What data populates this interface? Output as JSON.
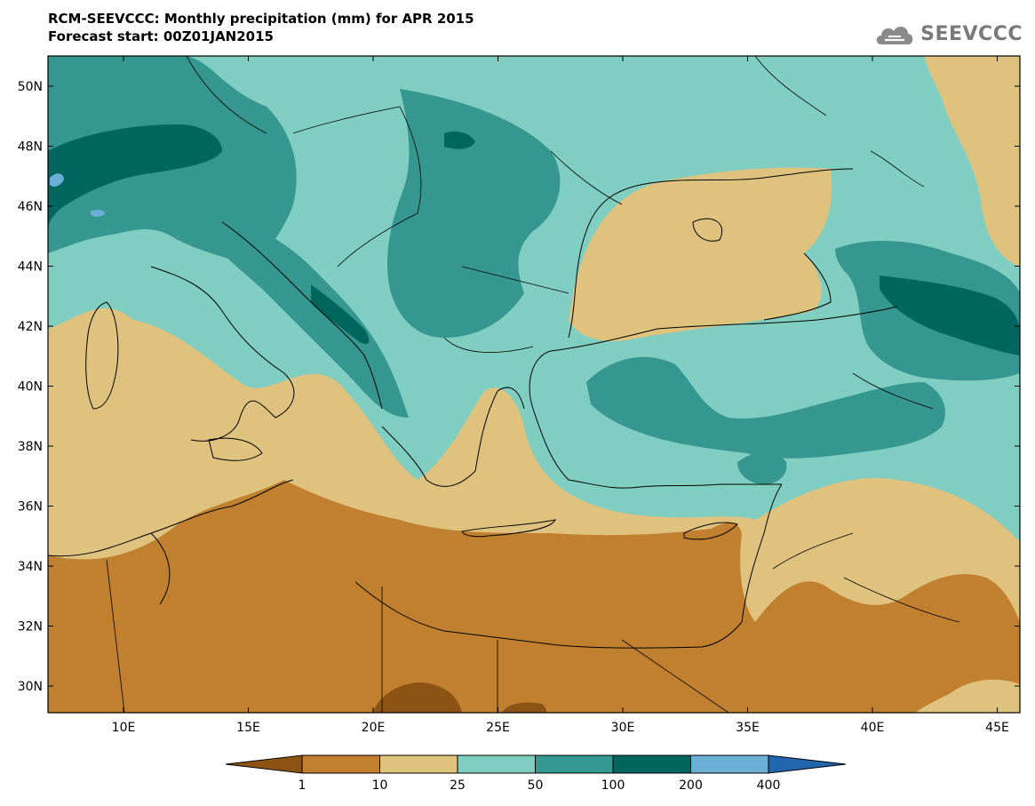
{
  "header": {
    "title_line1": "RCM-SEEVCCC: Monthly precipitation (mm) for APR 2015",
    "title_line2": "Forecast start: 00Z01JAN2015",
    "logo_text": "SEEVCCC"
  },
  "map": {
    "lat_ticks": [
      "50N",
      "48N",
      "46N",
      "44N",
      "42N",
      "40N",
      "38N",
      "36N",
      "34N",
      "32N",
      "30N"
    ],
    "lon_ticks": [
      "10E",
      "15E",
      "20E",
      "25E",
      "30E",
      "35E",
      "40E",
      "45E"
    ],
    "colors": {
      "lt1": "#8d5314",
      "c1_10": "#c0802f",
      "c10_25": "#dfc27d",
      "c25_50": "#80cdc1",
      "c50_100": "#35978f",
      "c100_200": "#01665e",
      "c200_400": "#6baed6",
      "gt400": "#2166ac"
    }
  },
  "colorbar": {
    "labels": [
      "1",
      "10",
      "25",
      "50",
      "100",
      "200",
      "400"
    ],
    "colors": [
      "#8d5314",
      "#c0802f",
      "#dfc27d",
      "#80cdc1",
      "#35978f",
      "#01665e",
      "#6baed6",
      "#2166ac"
    ]
  }
}
